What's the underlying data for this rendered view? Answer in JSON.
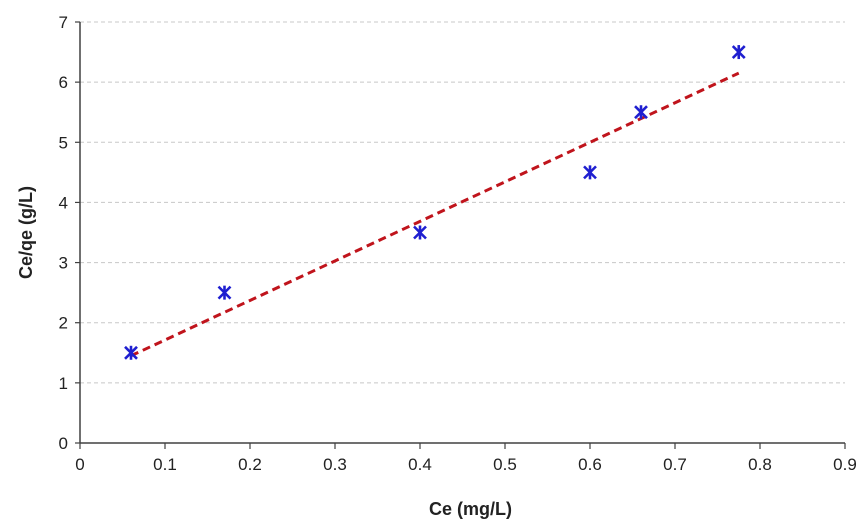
{
  "chart_data": {
    "type": "scatter",
    "title": "",
    "xlabel": "Ce (mg/L)",
    "ylabel": "Ce/qe (g/L)",
    "xlim": [
      0,
      0.9
    ],
    "ylim": [
      0,
      7
    ],
    "xticks": [
      "0",
      "0.1",
      "0.2",
      "0.3",
      "0.4",
      "0.5",
      "0.6",
      "0.7",
      "0.8",
      "0.9"
    ],
    "yticks": [
      "0",
      "1",
      "2",
      "3",
      "4",
      "5",
      "6",
      "7"
    ],
    "grid": "horizontal dashed",
    "series": [
      {
        "marker": "asterisk",
        "color": "#1f1fd0",
        "points": [
          {
            "x": 0.06,
            "y": 1.5
          },
          {
            "x": 0.17,
            "y": 2.5
          },
          {
            "x": 0.4,
            "y": 3.5
          },
          {
            "x": 0.6,
            "y": 4.5
          },
          {
            "x": 0.66,
            "y": 5.5
          },
          {
            "x": 0.775,
            "y": 6.5
          }
        ]
      }
    ],
    "trendline": {
      "style": "dashed",
      "color": "#c0141c",
      "points": [
        {
          "x": 0.06,
          "y": 1.45
        },
        {
          "x": 0.775,
          "y": 6.15
        }
      ]
    }
  }
}
